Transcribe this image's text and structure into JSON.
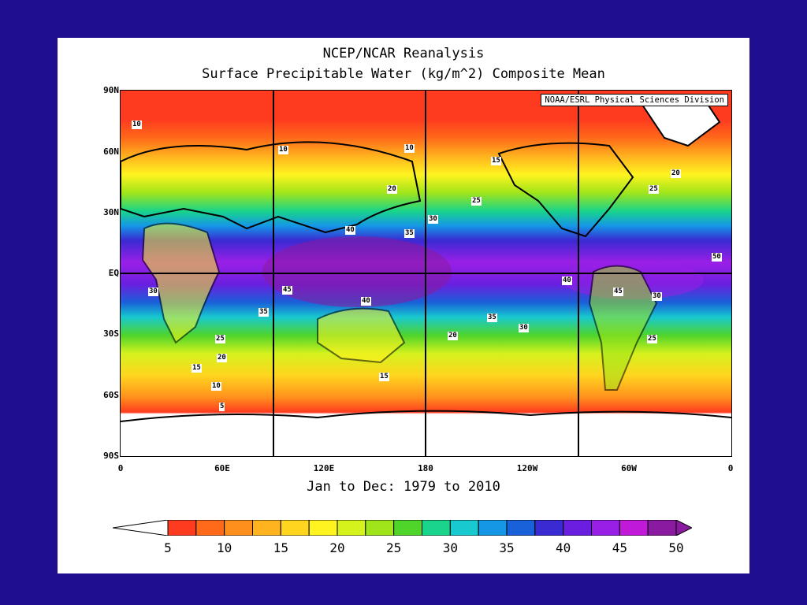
{
  "title": "NCEP/NCAR Reanalysis",
  "subtitle": "Surface Precipitable Water (kg/m^2) Composite Mean",
  "credit": "NOAA/ESRL Physical Sciences Division",
  "date_range": "Jan to Dec: 1979 to 2010",
  "lat_labels": [
    "90N",
    "60N",
    "30N",
    "EQ",
    "30S",
    "60S",
    "90S"
  ],
  "lon_labels": [
    "0",
    "60E",
    "120E",
    "180",
    "120W",
    "60W",
    "0"
  ],
  "colorbar": {
    "ticks": [
      "5",
      "10",
      "15",
      "20",
      "25",
      "30",
      "35",
      "40",
      "45",
      "50"
    ],
    "colors": [
      "#ff3b1f",
      "#ff6a1a",
      "#ff8f1c",
      "#ffb31e",
      "#ffd51f",
      "#fff420",
      "#d6f21d",
      "#9fe51a",
      "#4fd42a",
      "#19d48a",
      "#18c9cf",
      "#1597e6",
      "#1961d8",
      "#3a2ad2",
      "#6a1fe0",
      "#9a1fe6",
      "#c01ad8",
      "#8a1a9f"
    ]
  },
  "contour_labels": [
    "10",
    "10",
    "10",
    "15",
    "20",
    "25",
    "30",
    "35",
    "40",
    "45",
    "40",
    "35",
    "30",
    "25",
    "20",
    "15",
    "10",
    "5",
    "15",
    "20",
    "25",
    "30",
    "35",
    "40",
    "45",
    "50",
    "30",
    "25",
    "20"
  ]
}
